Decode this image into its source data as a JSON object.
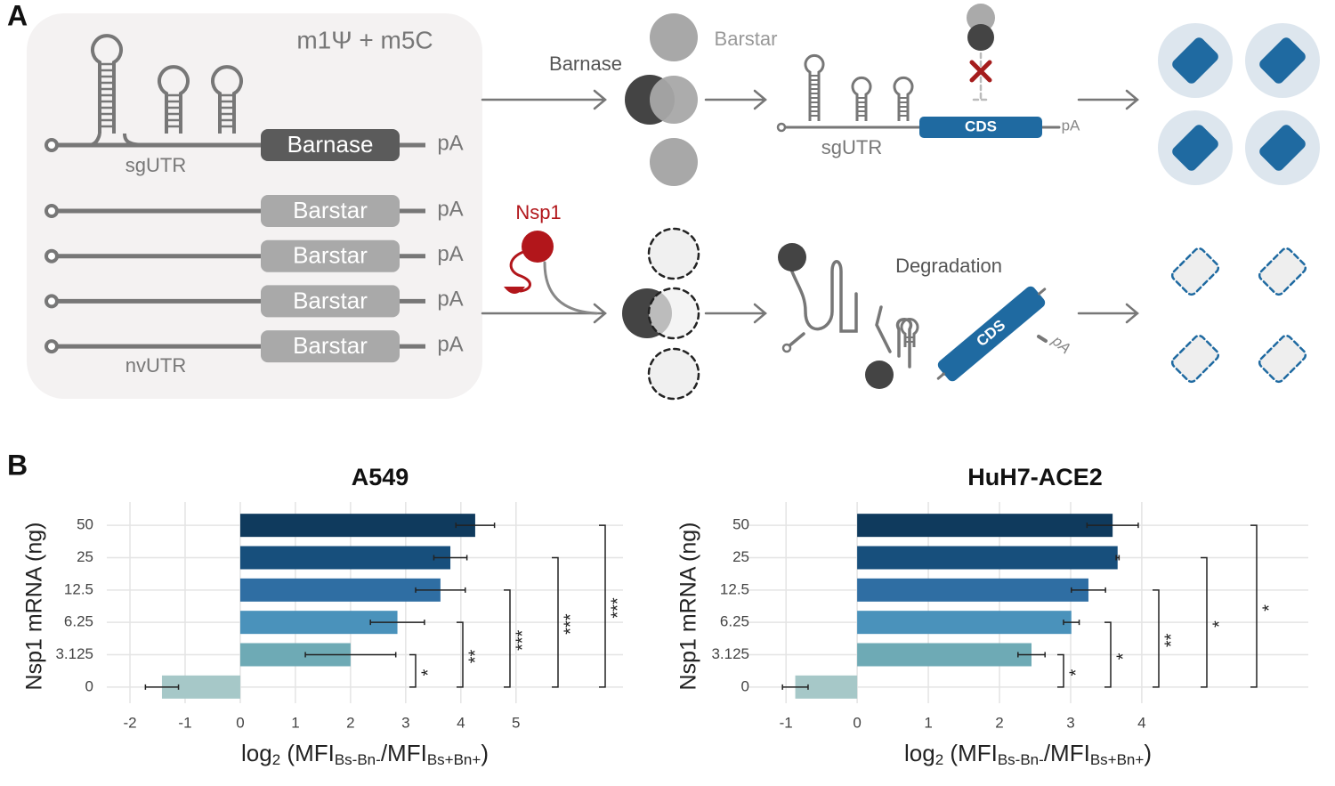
{
  "panel_a": {
    "label": "A",
    "mod": "m1Ψ + m5C",
    "top_construct": {
      "utr": "sgUTR",
      "gene": "Barnase",
      "pa": "pA"
    },
    "barstar_constructs": [
      {
        "gene": "Barstar",
        "pa": "pA"
      },
      {
        "gene": "Barstar",
        "pa": "pA"
      },
      {
        "gene": "Barstar",
        "pa": "pA"
      },
      {
        "gene": "Barstar",
        "pa": "pA"
      }
    ],
    "bottom_utr": "nvUTR",
    "arrow_label": "Barnase",
    "protein_label": "Barstar",
    "reporter": {
      "utr": "sgUTR",
      "cds": "CDS",
      "pa": "pA"
    },
    "nsp1": "Nsp1",
    "degradation": "Degradation",
    "degraded": {
      "cds": "CDS",
      "pa": "pA"
    }
  },
  "panel_b": {
    "label": "B"
  },
  "chart_data": [
    {
      "type": "bar",
      "orientation": "horizontal",
      "title": "A549",
      "ylabel": "Nsp1 mRNA (ng)",
      "xlabel_parts": [
        "log",
        "2",
        " (MFI",
        "Bs-Bn-",
        "/MFI",
        "Bs+Bn+",
        ")"
      ],
      "categories": [
        "50",
        "25",
        "12.5",
        "6.25",
        "3.125",
        "0"
      ],
      "values": [
        4.26,
        3.81,
        3.63,
        2.85,
        2.0,
        -1.42
      ],
      "errors": [
        0.35,
        0.3,
        0.45,
        0.49,
        0.82,
        0.3
      ],
      "colors": [
        "#0f3a5d",
        "#174f7c",
        "#2f6ea3",
        "#4a92bb",
        "#6eaab5",
        "#a6c8c8"
      ],
      "xlim": [
        -2.42,
        6.94
      ],
      "xticks": [
        -2,
        -1,
        0,
        1,
        2,
        3,
        4,
        5
      ],
      "grid": true,
      "significance": [
        "*",
        "**",
        "***",
        "***",
        "***"
      ]
    },
    {
      "type": "bar",
      "orientation": "horizontal",
      "title": "HuH7-ACE2",
      "ylabel": "Nsp1 mRNA (ng)",
      "xlabel_parts": [
        "log",
        "2",
        " (MFI",
        "Bs-Bn-",
        "/MFI",
        "Bs+Bn+",
        ")"
      ],
      "categories": [
        "50",
        "25",
        "12.5",
        "6.25",
        "3.125",
        "0"
      ],
      "values": [
        3.59,
        3.66,
        3.25,
        3.01,
        2.45,
        -0.87
      ],
      "errors": [
        0.36,
        0.02,
        0.24,
        0.11,
        0.19,
        0.18
      ],
      "colors": [
        "#0f3a5d",
        "#174f7c",
        "#2f6ea3",
        "#4a92bb",
        "#6eaab5",
        "#a6c8c8"
      ],
      "xlim": [
        -1.54,
        6.34
      ],
      "xticks": [
        -1,
        0,
        1,
        2,
        3,
        4
      ],
      "grid": true,
      "significance": [
        "*",
        "*",
        "**",
        "*",
        "*"
      ]
    }
  ]
}
